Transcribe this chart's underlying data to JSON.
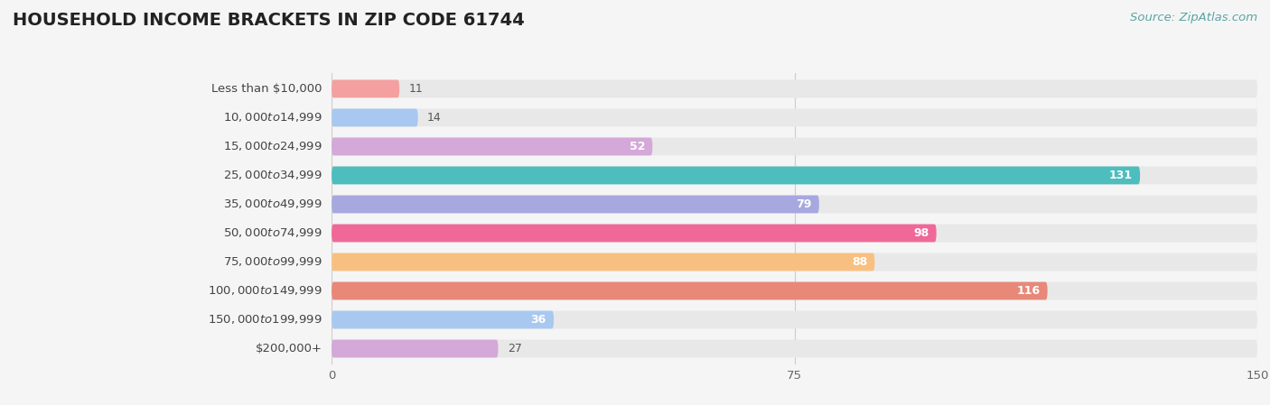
{
  "title": "HOUSEHOLD INCOME BRACKETS IN ZIP CODE 61744",
  "source": "Source: ZipAtlas.com",
  "categories": [
    "Less than $10,000",
    "$10,000 to $14,999",
    "$15,000 to $24,999",
    "$25,000 to $34,999",
    "$35,000 to $49,999",
    "$50,000 to $74,999",
    "$75,000 to $99,999",
    "$100,000 to $149,999",
    "$150,000 to $199,999",
    "$200,000+"
  ],
  "values": [
    11,
    14,
    52,
    131,
    79,
    98,
    88,
    116,
    36,
    27
  ],
  "bar_colors": [
    "#F4A0A0",
    "#A8C8F0",
    "#D4A8D8",
    "#4DBDBE",
    "#A8A8E0",
    "#F06898",
    "#F8C080",
    "#E88878",
    "#A8C8F0",
    "#D4A8D8"
  ],
  "xlim": [
    0,
    150
  ],
  "xticks": [
    0,
    75,
    150
  ],
  "background_color": "#f5f5f5",
  "bar_bg_color": "#e8e8e8",
  "title_fontsize": 14,
  "label_fontsize": 9.5,
  "value_fontsize": 9,
  "source_fontsize": 9.5,
  "source_color": "#5ba4a4",
  "bar_height": 0.62,
  "bar_gap": 0.05,
  "label_threshold": 30
}
